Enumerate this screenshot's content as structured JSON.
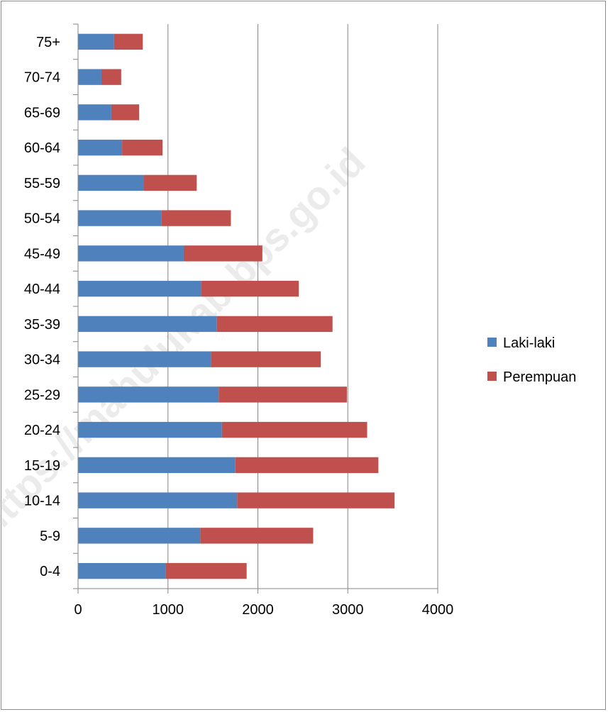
{
  "watermark": "https://mahulukab.bps.go.id",
  "chart_data": {
    "type": "bar",
    "orientation": "horizontal",
    "stacked": true,
    "categories": [
      "0-4",
      "5-9",
      "10-14",
      "15-19",
      "20-24",
      "25-29",
      "30-34",
      "35-39",
      "40-44",
      "45-49",
      "50-54",
      "55-59",
      "60-64",
      "65-69",
      "70-74",
      "75+"
    ],
    "series": [
      {
        "name": "Laki-laki",
        "color": "#4f81bd",
        "values": [
          975,
          1360,
          1770,
          1750,
          1600,
          1565,
          1480,
          1545,
          1370,
          1175,
          925,
          730,
          490,
          370,
          260,
          400
        ]
      },
      {
        "name": "Perempuan",
        "color": "#c0504d",
        "values": [
          900,
          1255,
          1750,
          1590,
          1615,
          1425,
          1220,
          1285,
          1085,
          875,
          775,
          590,
          450,
          310,
          220,
          320
        ]
      }
    ],
    "xlim": [
      0,
      4000
    ],
    "x_ticks": [
      0,
      1000,
      2000,
      3000,
      4000
    ],
    "x_tick_labels": [
      "0",
      "1000",
      "2000",
      "3000",
      "4000"
    ],
    "grid": "vertical",
    "legend_position": "right",
    "title": "",
    "xlabel": "",
    "ylabel": ""
  }
}
